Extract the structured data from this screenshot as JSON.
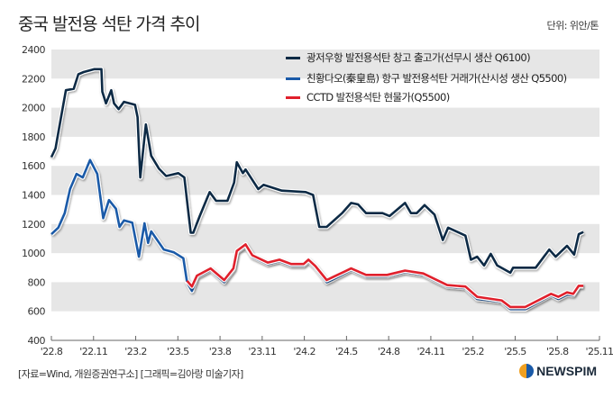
{
  "title": "중국 발전용 석탄 가격 추이",
  "unit": "단위: 위안/톤",
  "source": "[자료=Wind, 개원증권연구소] [그래픽=김아랑 미술기자]",
  "logo_text": "NEWSPIM",
  "colors": {
    "band": "#e6e6e6",
    "navy": "#0d2a45",
    "blue": "#1a5aa8",
    "red": "#e0202c"
  },
  "chart_data": {
    "type": "line",
    "title": "중국 발전용 석탄 가격 추이",
    "ylabel": "단위: 위안/톤",
    "ylim": [
      400,
      2400
    ],
    "yticks": [
      "400",
      "600",
      "800",
      "1000",
      "1200",
      "1400",
      "1600",
      "1800",
      "2000",
      "2200",
      "2400"
    ],
    "xlim": [
      "2022-08-01",
      "2025-11-01"
    ],
    "xticks": [
      {
        "label": "'22.8",
        "date": "2022-08-01"
      },
      {
        "label": "'22.11",
        "date": "2022-11-01"
      },
      {
        "label": "'23.2",
        "date": "2023-02-01"
      },
      {
        "label": "'23.5",
        "date": "2023-05-01"
      },
      {
        "label": "'23.8",
        "date": "2023-08-01"
      },
      {
        "label": "'23.11",
        "date": "2023-11-01"
      },
      {
        "label": "'24.2",
        "date": "2024-02-01"
      },
      {
        "label": "'24.5",
        "date": "2024-05-01"
      },
      {
        "label": "'24.8",
        "date": "2024-08-01"
      },
      {
        "label": "'24.11",
        "date": "2024-11-01"
      },
      {
        "label": "'25.2",
        "date": "2025-02-01"
      },
      {
        "label": "'25.5",
        "date": "2025-05-01"
      },
      {
        "label": "'25.8",
        "date": "2025-08-01"
      },
      {
        "label": "'25.11",
        "date": "2025-11-01"
      }
    ],
    "grid": "alternating horizontal bands",
    "legend_position": "top-right",
    "series": [
      {
        "name": "광저우항 발전용석탄 창고 출고가(선무시 생산 Q6100)",
        "color": "#0d2a45",
        "points": [
          [
            "2022-08-01",
            1660
          ],
          [
            "2022-08-10",
            1720
          ],
          [
            "2022-08-16",
            1830
          ],
          [
            "2022-09-02",
            2120
          ],
          [
            "2022-09-19",
            2130
          ],
          [
            "2022-09-29",
            2230
          ],
          [
            "2022-10-10",
            2245
          ],
          [
            "2022-11-03",
            2265
          ],
          [
            "2022-11-18",
            2265
          ],
          [
            "2022-11-20",
            2110
          ],
          [
            "2022-11-28",
            2030
          ],
          [
            "2022-12-09",
            2120
          ],
          [
            "2022-12-15",
            2030
          ],
          [
            "2022-12-25",
            1990
          ],
          [
            "2023-01-06",
            2040
          ],
          [
            "2023-01-30",
            2020
          ],
          [
            "2023-02-05",
            1935
          ],
          [
            "2023-02-11",
            1520
          ],
          [
            "2023-02-23",
            1885
          ],
          [
            "2023-03-04",
            1670
          ],
          [
            "2023-03-21",
            1580
          ],
          [
            "2023-04-06",
            1530
          ],
          [
            "2023-05-02",
            1550
          ],
          [
            "2023-05-15",
            1520
          ],
          [
            "2023-05-29",
            1140
          ],
          [
            "2023-06-04",
            1140
          ],
          [
            "2023-06-18",
            1255
          ],
          [
            "2023-07-09",
            1420
          ],
          [
            "2023-07-23",
            1360
          ],
          [
            "2023-08-17",
            1360
          ],
          [
            "2023-09-01",
            1485
          ],
          [
            "2023-09-07",
            1625
          ],
          [
            "2023-09-20",
            1550
          ],
          [
            "2023-09-26",
            1575
          ],
          [
            "2023-10-23",
            1440
          ],
          [
            "2023-11-04",
            1470
          ],
          [
            "2023-12-13",
            1430
          ],
          [
            "2024-02-04",
            1420
          ],
          [
            "2024-02-20",
            1400
          ],
          [
            "2024-03-03",
            1180
          ],
          [
            "2024-03-19",
            1180
          ],
          [
            "2024-04-22",
            1275
          ],
          [
            "2024-05-11",
            1345
          ],
          [
            "2024-05-26",
            1335
          ],
          [
            "2024-06-13",
            1275
          ],
          [
            "2024-07-18",
            1275
          ],
          [
            "2024-08-03",
            1255
          ],
          [
            "2024-09-06",
            1345
          ],
          [
            "2024-09-19",
            1275
          ],
          [
            "2024-10-01",
            1275
          ],
          [
            "2024-10-18",
            1330
          ],
          [
            "2024-11-09",
            1265
          ],
          [
            "2024-11-27",
            1090
          ],
          [
            "2024-12-08",
            1175
          ],
          [
            "2025-01-15",
            1120
          ],
          [
            "2025-01-27",
            955
          ],
          [
            "2025-02-10",
            975
          ],
          [
            "2025-02-25",
            915
          ],
          [
            "2025-03-09",
            995
          ],
          [
            "2025-03-23",
            915
          ],
          [
            "2025-04-21",
            865
          ],
          [
            "2025-04-27",
            900
          ],
          [
            "2025-06-15",
            900
          ],
          [
            "2025-07-14",
            1025
          ],
          [
            "2025-07-28",
            975
          ],
          [
            "2025-08-22",
            1050
          ],
          [
            "2025-09-07",
            990
          ],
          [
            "2025-09-17",
            1130
          ],
          [
            "2025-09-27",
            1145
          ]
        ]
      },
      {
        "name": "친황다오(秦皇島) 항구 발전용석탄 거래가(산시성 생산 Q5500)",
        "color": "#1a5aa8",
        "points": [
          [
            "2022-08-01",
            1130
          ],
          [
            "2022-08-16",
            1175
          ],
          [
            "2022-08-30",
            1275
          ],
          [
            "2022-09-11",
            1440
          ],
          [
            "2022-09-25",
            1545
          ],
          [
            "2022-10-08",
            1520
          ],
          [
            "2022-10-24",
            1640
          ],
          [
            "2022-11-09",
            1545
          ],
          [
            "2022-11-22",
            1240
          ],
          [
            "2022-12-04",
            1365
          ],
          [
            "2022-12-19",
            1305
          ],
          [
            "2022-12-27",
            1180
          ],
          [
            "2023-01-06",
            1225
          ],
          [
            "2023-01-24",
            1210
          ],
          [
            "2023-02-08",
            975
          ],
          [
            "2023-02-20",
            1205
          ],
          [
            "2023-02-28",
            1070
          ],
          [
            "2023-03-04",
            1150
          ],
          [
            "2023-04-01",
            1025
          ],
          [
            "2023-04-23",
            1005
          ],
          [
            "2023-05-13",
            965
          ],
          [
            "2023-05-21",
            800
          ],
          [
            "2023-06-01",
            740
          ],
          [
            "2023-06-12",
            835
          ],
          [
            "2023-07-11",
            885
          ],
          [
            "2023-08-10",
            800
          ],
          [
            "2023-08-30",
            885
          ],
          [
            "2023-09-07",
            1005
          ],
          [
            "2023-09-26",
            1050
          ],
          [
            "2023-10-10",
            975
          ],
          [
            "2023-11-13",
            925
          ],
          [
            "2023-12-08",
            945
          ],
          [
            "2024-01-03",
            915
          ],
          [
            "2024-01-30",
            915
          ],
          [
            "2024-02-10",
            945
          ],
          [
            "2024-02-25",
            900
          ],
          [
            "2024-03-19",
            800
          ],
          [
            "2024-04-02",
            820
          ],
          [
            "2024-05-11",
            885
          ],
          [
            "2024-06-13",
            840
          ],
          [
            "2024-07-28",
            840
          ],
          [
            "2024-09-06",
            870
          ],
          [
            "2024-10-15",
            850
          ],
          [
            "2024-12-06",
            770
          ],
          [
            "2025-01-15",
            760
          ],
          [
            "2025-02-10",
            685
          ],
          [
            "2025-04-02",
            665
          ],
          [
            "2025-04-21",
            615
          ],
          [
            "2025-05-23",
            615
          ],
          [
            "2025-07-18",
            710
          ],
          [
            "2025-08-03",
            685
          ],
          [
            "2025-08-22",
            715
          ],
          [
            "2025-09-05",
            710
          ],
          [
            "2025-09-17",
            770
          ],
          [
            "2025-09-27",
            770
          ]
        ]
      },
      {
        "name": "CCTD 발전용석탄 현물가(Q5500)",
        "color": "#e0202c",
        "points": [
          [
            "2023-05-21",
            810
          ],
          [
            "2023-06-01",
            770
          ],
          [
            "2023-06-12",
            845
          ],
          [
            "2023-07-11",
            895
          ],
          [
            "2023-08-10",
            815
          ],
          [
            "2023-08-30",
            895
          ],
          [
            "2023-09-07",
            1015
          ],
          [
            "2023-09-26",
            1060
          ],
          [
            "2023-10-10",
            985
          ],
          [
            "2023-11-13",
            935
          ],
          [
            "2023-12-08",
            955
          ],
          [
            "2024-01-03",
            925
          ],
          [
            "2024-01-30",
            925
          ],
          [
            "2024-02-10",
            955
          ],
          [
            "2024-02-25",
            910
          ],
          [
            "2024-03-19",
            815
          ],
          [
            "2024-04-02",
            835
          ],
          [
            "2024-05-11",
            895
          ],
          [
            "2024-06-13",
            850
          ],
          [
            "2024-07-28",
            850
          ],
          [
            "2024-09-06",
            880
          ],
          [
            "2024-10-15",
            860
          ],
          [
            "2024-12-06",
            780
          ],
          [
            "2025-01-15",
            770
          ],
          [
            "2025-02-10",
            700
          ],
          [
            "2025-04-02",
            675
          ],
          [
            "2025-04-21",
            630
          ],
          [
            "2025-05-23",
            630
          ],
          [
            "2025-07-18",
            720
          ],
          [
            "2025-08-03",
            700
          ],
          [
            "2025-08-22",
            730
          ],
          [
            "2025-09-05",
            720
          ],
          [
            "2025-09-17",
            775
          ],
          [
            "2025-09-27",
            775
          ]
        ]
      }
    ]
  }
}
